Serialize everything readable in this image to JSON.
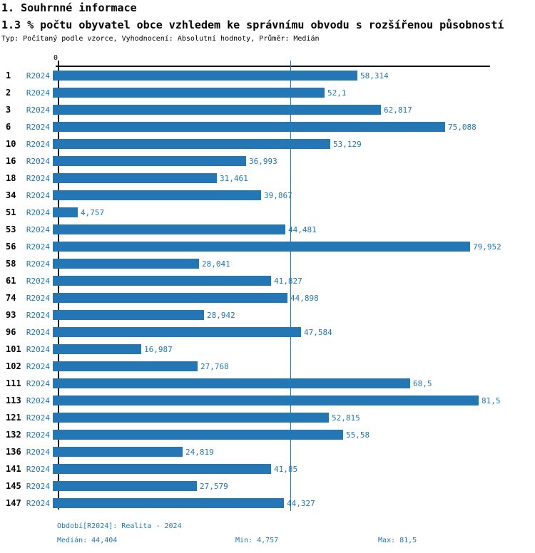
{
  "header": {
    "title1": "1. Souhrnné informace",
    "title2": "1.3 % počtu obyvatel obce vzhledem ke správnímu obvodu s rozšířenou působností",
    "subtitle": "Typ: Počítaný podle vzorce, Vyhodnocení: Absolutní hodnoty, Průměr: Medián"
  },
  "chart_data": {
    "type": "bar",
    "orientation": "horizontal",
    "title": "1.3 % počtu obyvatel obce vzhledem ke správnímu obvodu s rozšířenou působností",
    "series_label": "R2024",
    "categories": [
      "1",
      "2",
      "3",
      "6",
      "10",
      "16",
      "18",
      "34",
      "51",
      "53",
      "56",
      "58",
      "61",
      "74",
      "93",
      "96",
      "101",
      "102",
      "111",
      "113",
      "121",
      "132",
      "136",
      "141",
      "145",
      "147"
    ],
    "values": [
      58.314,
      52.1,
      62.817,
      75.088,
      53.129,
      36.993,
      31.461,
      39.867,
      4.757,
      44.481,
      79.952,
      28.041,
      41.827,
      44.898,
      28.942,
      47.584,
      16.987,
      27.768,
      68.5,
      81.5,
      52.815,
      55.58,
      24.819,
      41.85,
      27.579,
      44.327
    ],
    "value_labels": [
      "58,314",
      "52,1",
      "62,817",
      "75,088",
      "53,129",
      "36,993",
      "31,461",
      "39,867",
      "4,757",
      "44,481",
      "79,952",
      "28,041",
      "41,827",
      "44,898",
      "28,942",
      "47,584",
      "16,987",
      "27,768",
      "68,5",
      "81,5",
      "52,815",
      "55,58",
      "24,819",
      "41,85",
      "27,579",
      "44,327"
    ],
    "x_axis": {
      "zero_label": "0",
      "min": 0,
      "max": 82.7,
      "grid": false
    },
    "median_line_value": 44.404,
    "legend_position": "none",
    "bar_color": "#2277b4",
    "label_color": "#1f77b4"
  },
  "footer": {
    "period": "Období[R2024]: Realita - 2024",
    "median": "Medián: 44,404",
    "min": "Min: 4,757",
    "max": "Max: 81,5"
  }
}
